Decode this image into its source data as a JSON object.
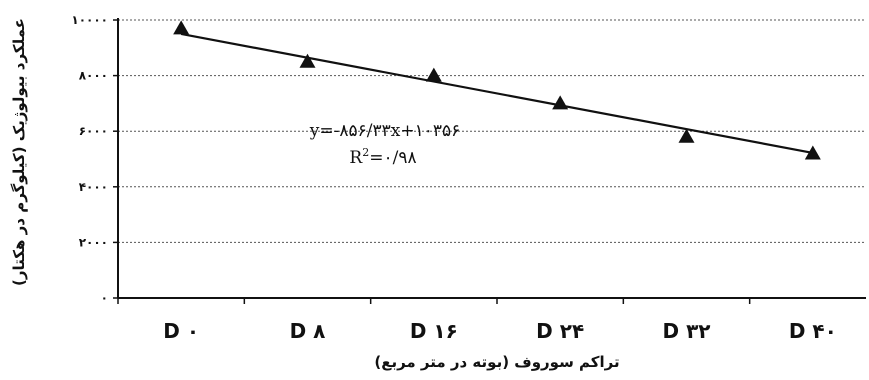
{
  "chart_data": {
    "type": "scatter",
    "xlabel": "تراکم سوروف (بوته در متر مربع)",
    "ylabel": "عملکرد بیولوژیک (کیلوگرم در هکتار)",
    "categories": [
      "D ۰",
      "D ۸",
      "D ۱۶",
      "D ۲۴",
      "D ۳۲",
      "D ۴۰"
    ],
    "values": [
      9700,
      8500,
      8000,
      7000,
      5800,
      5200
    ],
    "ylim": [
      0,
      10000
    ],
    "yticks": [
      0,
      2000,
      4000,
      6000,
      8000,
      10000
    ],
    "ytick_labels": [
      "۰",
      "۲۰۰۰",
      "۴۰۰۰",
      "۶۰۰۰",
      "۸۰۰۰",
      "۱۰۰۰۰"
    ],
    "grid": "horizontal dashed",
    "marker": "triangle",
    "trendline": {
      "slope": -856.33,
      "intercept": 10356
    },
    "annotations": {
      "equation": "y=-۸۵۶/۳۳x+۱۰۳۵۶",
      "r2_label": "R",
      "r2_sup": "2",
      "r2_value": "=۰/۹۸"
    },
    "colors": {
      "line": "#111111",
      "marker": "#111111",
      "grid": "#555555"
    }
  }
}
